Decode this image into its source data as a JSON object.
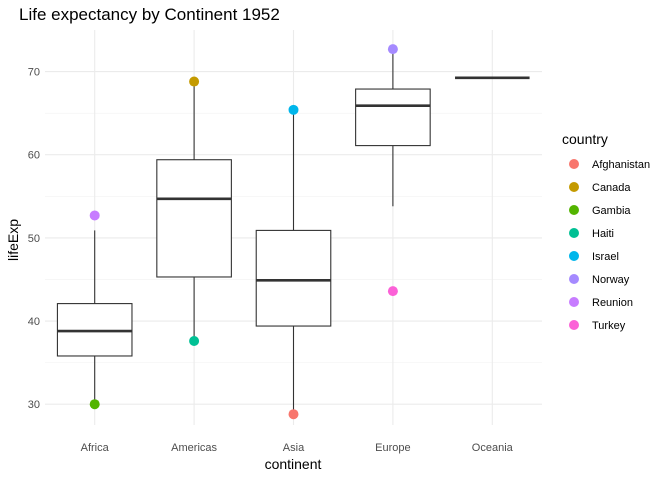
{
  "chart_data": {
    "type": "boxplot",
    "title": "Life expectancy by Continent 1952",
    "xlabel": "continent",
    "ylabel": "lifeExp",
    "categories": [
      "Africa",
      "Americas",
      "Asia",
      "Europe",
      "Oceania"
    ],
    "ylim": [
      27.5,
      75
    ],
    "yticks": [
      30,
      40,
      50,
      60,
      70
    ],
    "grid": true,
    "boxes": [
      {
        "category": "Africa",
        "whisker_low": 30.0,
        "q1": 35.8,
        "median": 38.8,
        "q3": 42.1,
        "whisker_high": 50.9
      },
      {
        "category": "Americas",
        "whisker_low": 37.6,
        "q1": 45.3,
        "median": 54.7,
        "q3": 59.4,
        "whisker_high": 68.7
      },
      {
        "category": "Asia",
        "whisker_low": 28.8,
        "q1": 39.4,
        "median": 44.9,
        "q3": 50.9,
        "whisker_high": 65.4
      },
      {
        "category": "Europe",
        "whisker_low": 53.8,
        "q1": 61.1,
        "median": 65.9,
        "q3": 67.9,
        "whisker_high": 72.7
      },
      {
        "category": "Oceania",
        "whisker_low": 69.25,
        "q1": 69.25,
        "median": 69.25,
        "q3": 69.25,
        "whisker_high": 69.25
      }
    ],
    "points": [
      {
        "country": "Afghanistan",
        "continent": "Asia",
        "y": 28.8
      },
      {
        "country": "Canada",
        "continent": "Americas",
        "y": 68.8
      },
      {
        "country": "Gambia",
        "continent": "Africa",
        "y": 30.0
      },
      {
        "country": "Haiti",
        "continent": "Americas",
        "y": 37.6
      },
      {
        "country": "Israel",
        "continent": "Asia",
        "y": 65.4
      },
      {
        "country": "Norway",
        "continent": "Europe",
        "y": 72.7
      },
      {
        "country": "Reunion",
        "continent": "Africa",
        "y": 52.7
      },
      {
        "country": "Turkey",
        "continent": "Europe",
        "y": 43.6
      }
    ],
    "legend": {
      "title": "country",
      "placement": "right",
      "entries": [
        {
          "label": "Afghanistan",
          "color": "#F8766D"
        },
        {
          "label": "Canada",
          "color": "#C49A00"
        },
        {
          "label": "Gambia",
          "color": "#53B400"
        },
        {
          "label": "Haiti",
          "color": "#00C094"
        },
        {
          "label": "Israel",
          "color": "#00B6EB"
        },
        {
          "label": "Norway",
          "color": "#A58AFF"
        },
        {
          "label": "Reunion",
          "color": "#C77CFF"
        },
        {
          "label": "Turkey",
          "color": "#FB61D7"
        }
      ]
    }
  }
}
